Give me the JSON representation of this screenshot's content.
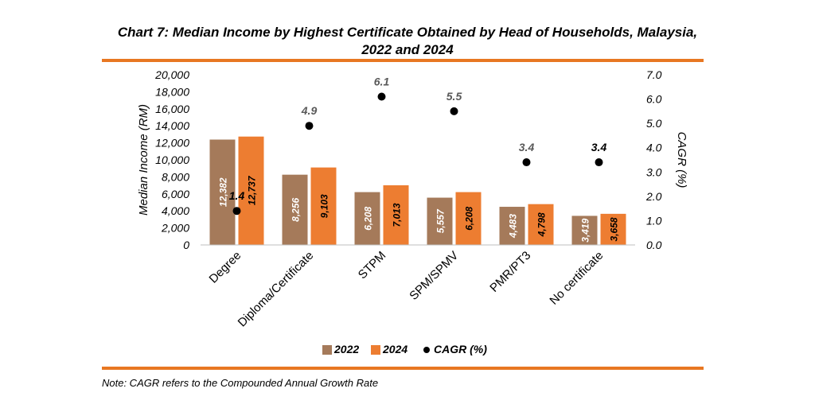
{
  "title_line1": "Chart 7: Median Income by Highest Certificate Obtained by Head of Households, Malaysia,",
  "title_line2": "2022 and 2024",
  "note": "Note: CAGR refers to the Compounded Annual Growth Rate",
  "colors": {
    "accent_rule": "#E87722",
    "series_2022": "#A57A5A",
    "series_2024": "#ED7D31",
    "cagr_dot": "#000000",
    "cagr_label_grey": "#595959"
  },
  "chart_data": {
    "type": "bar",
    "categories": [
      "Degree",
      "Diploma/Certificate",
      "STPM",
      "SPM/SPMV",
      "PMR/PT3",
      "No certificate"
    ],
    "series": [
      {
        "name": "2022",
        "values": [
          12382,
          8256,
          6208,
          5557,
          4483,
          3419
        ],
        "labels": [
          "12,382",
          "8,256",
          "6,208",
          "5,557",
          "4,483",
          "3,419"
        ]
      },
      {
        "name": "2024",
        "values": [
          12737,
          9103,
          7013,
          6208,
          4798,
          3658
        ],
        "labels": [
          "12,737",
          "9,103",
          "7,013",
          "6,208",
          "4,798",
          "3,658"
        ]
      }
    ],
    "line_series": {
      "name": "CAGR (%)",
      "type": "scatter",
      "axis": "secondary",
      "values": [
        1.4,
        4.9,
        6.1,
        5.5,
        3.4,
        3.4
      ],
      "labels": [
        "1.4",
        "4.9",
        "6.1",
        "5.5",
        "3.4",
        "3.4"
      ]
    },
    "ylabel": "Median Income (RM)",
    "y2label": "CAGR (%)",
    "ylim": [
      0,
      20000
    ],
    "y2lim": [
      0,
      7
    ],
    "yticks": [
      "0",
      "2,000",
      "4,000",
      "6,000",
      "8,000",
      "10,000",
      "12,000",
      "14,000",
      "16,000",
      "18,000",
      "20,000"
    ],
    "y2ticks": [
      "0.0",
      "1.0",
      "2.0",
      "3.0",
      "4.0",
      "5.0",
      "6.0",
      "7.0"
    ],
    "grid": false,
    "legend_position": "bottom",
    "legend": [
      "2022",
      "2024",
      "CAGR (%)"
    ]
  }
}
